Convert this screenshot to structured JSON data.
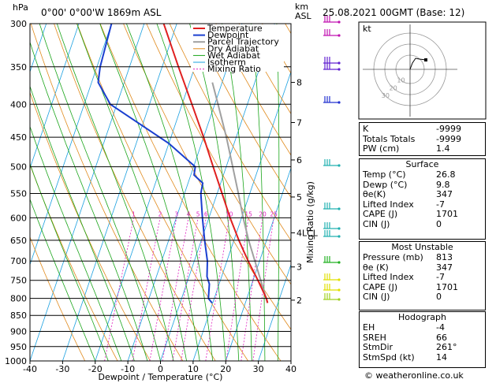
{
  "header": {
    "location": "0°00'  0°00'W  1869m  ASL",
    "datetime": "25.08.2021  00GMT  (Base: 12)",
    "hpa_label": "hPa",
    "km_label": "km\nASL"
  },
  "chart_data": {
    "type": "skew-t",
    "xlabel": "Dewpoint / Temperature (°C)",
    "ylabel_right": "Mixing Ratio (g/kg)",
    "x_ticks": [
      -40,
      -30,
      -20,
      -10,
      0,
      10,
      20,
      30,
      40
    ],
    "pressure_ticks": [
      300,
      350,
      400,
      450,
      500,
      550,
      600,
      650,
      700,
      750,
      800,
      850,
      900,
      950,
      1000
    ],
    "km_ticks": [
      {
        "label": "8",
        "p": 370
      },
      {
        "label": "7",
        "p": 427
      },
      {
        "label": "6",
        "p": 488
      },
      {
        "label": "5",
        "p": 557
      },
      {
        "label": "4LCL",
        "p": 633
      },
      {
        "label": "3",
        "p": 715
      },
      {
        "label": "2",
        "p": 805
      }
    ],
    "mixing_ratio_labels": [
      "1",
      "2",
      "3",
      "4",
      "5",
      "6",
      "10",
      "15",
      "20",
      "25"
    ],
    "mixing_ratio_values": [
      1,
      2,
      3,
      4,
      5,
      6,
      10,
      15,
      20,
      25
    ],
    "legend": [
      "Temperature",
      "Dewpoint",
      "Parcel Trajectory",
      "Dry Adiabat",
      "Wet Adiabat",
      "Isotherm",
      "Mixing Ratio"
    ],
    "colors": {
      "temperature": "#e02020",
      "dewpoint": "#1a3fd0",
      "parcel": "#a0a0a0",
      "dry_adiabat": "#e08a1c",
      "wet_adiabat": "#1aa51a",
      "isotherm": "#1aa0e0",
      "mixing": "#e020c0"
    },
    "temperature": [
      [
        813,
        26.8
      ],
      [
        800,
        26
      ],
      [
        750,
        21.5
      ],
      [
        700,
        16.5
      ],
      [
        650,
        11.5
      ],
      [
        600,
        6.5
      ],
      [
        550,
        1.5
      ],
      [
        500,
        -4
      ],
      [
        450,
        -10
      ],
      [
        400,
        -17
      ],
      [
        350,
        -25
      ],
      [
        300,
        -34
      ]
    ],
    "dewpoint": [
      [
        813,
        9.8
      ],
      [
        800,
        8.2
      ],
      [
        760,
        7
      ],
      [
        740,
        5.5
      ],
      [
        700,
        4
      ],
      [
        650,
        1
      ],
      [
        600,
        -2
      ],
      [
        550,
        -5
      ],
      [
        530,
        -5.5
      ],
      [
        515,
        -9
      ],
      [
        500,
        -9.5
      ],
      [
        460,
        -20
      ],
      [
        400,
        -42
      ],
      [
        370,
        -48
      ],
      [
        350,
        -49
      ],
      [
        300,
        -50
      ]
    ],
    "parcel": [
      [
        813,
        26.8
      ],
      [
        650,
        14.5
      ],
      [
        600,
        10.5
      ],
      [
        550,
        6.5
      ],
      [
        500,
        2
      ],
      [
        450,
        -3
      ],
      [
        400,
        -9
      ],
      [
        370,
        -13
      ]
    ]
  },
  "hodograph": {
    "label": "kt",
    "rings": [
      "10",
      "20",
      "30"
    ]
  },
  "indices": [
    {
      "label": "K",
      "value": "-9999"
    },
    {
      "label": "Totals Totals",
      "value": "-9999"
    },
    {
      "label": "PW (cm)",
      "value": "1.4"
    }
  ],
  "surface": {
    "title": "Surface",
    "rows": [
      {
        "label": "Temp (°C)",
        "value": "26.8"
      },
      {
        "label": "Dewp (°C)",
        "value": "9.8"
      },
      {
        "label": "θe(K)",
        "value": "347"
      },
      {
        "label": "Lifted Index",
        "value": "-7"
      },
      {
        "label": "CAPE (J)",
        "value": "1701"
      },
      {
        "label": "CIN (J)",
        "value": "0"
      }
    ]
  },
  "most_unstable": {
    "title": "Most Unstable",
    "rows": [
      {
        "label": "Pressure (mb)",
        "value": "813"
      },
      {
        "label": "θe (K)",
        "value": "347"
      },
      {
        "label": "Lifted Index",
        "value": "-7"
      },
      {
        "label": "CAPE (J)",
        "value": "1701"
      },
      {
        "label": "CIN (J)",
        "value": "0"
      }
    ]
  },
  "hodograph_table": {
    "title": "Hodograph",
    "rows": [
      {
        "label": "EH",
        "value": "-4"
      },
      {
        "label": "SREH",
        "value": "66"
      },
      {
        "label": "StmDir",
        "value": "261°"
      },
      {
        "label": "StmSpd (kt)",
        "value": "14"
      }
    ]
  },
  "credit": "© weatheronline.co.uk"
}
